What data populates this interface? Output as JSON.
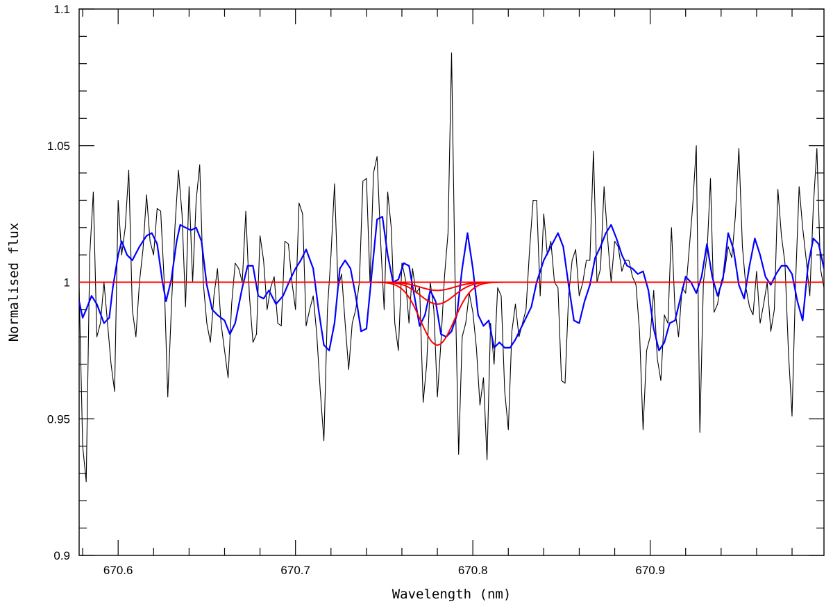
{
  "chart_data": {
    "type": "line",
    "xlabel": "Wavelength (nm)",
    "ylabel": "Normalised flux",
    "xlim": [
      670.578,
      670.998
    ],
    "ylim": [
      0.9,
      1.1
    ],
    "x_ticks": [
      670.6,
      670.7,
      670.8,
      670.9
    ],
    "x_tick_labels": [
      "670.6",
      "670.7",
      "670.8",
      "670.9"
    ],
    "y_ticks": [
      0.9,
      0.95,
      1.0,
      1.05,
      1.1
    ],
    "y_tick_labels": [
      "0.9",
      "0.95",
      "1",
      "1.05",
      "1.1"
    ],
    "series": [
      {
        "style": "observed",
        "color": "#000000",
        "x": [
          670.578,
          670.58,
          670.582,
          670.584,
          670.586,
          670.588,
          670.59,
          670.592,
          670.594,
          670.596,
          670.598,
          670.6,
          670.602,
          670.604,
          670.606,
          670.608,
          670.61,
          670.612,
          670.614,
          670.616,
          670.618,
          670.62,
          670.622,
          670.624,
          670.626,
          670.628,
          670.63,
          670.632,
          670.634,
          670.636,
          670.638,
          670.64,
          670.642,
          670.644,
          670.646,
          670.648,
          670.65,
          670.652,
          670.654,
          670.656,
          670.658,
          670.66,
          670.662,
          670.664,
          670.666,
          670.668,
          670.67,
          670.672,
          670.674,
          670.676,
          670.678,
          670.68,
          670.682,
          670.684,
          670.686,
          670.688,
          670.69,
          670.692,
          670.694,
          670.696,
          670.698,
          670.7,
          670.702,
          670.704,
          670.706,
          670.708,
          670.71,
          670.712,
          670.714,
          670.716,
          670.718,
          670.72,
          670.722,
          670.724,
          670.726,
          670.728,
          670.73,
          670.732,
          670.734,
          670.736,
          670.738,
          670.74,
          670.742,
          670.744,
          670.746,
          670.748,
          670.75,
          670.752,
          670.754,
          670.756,
          670.758,
          670.76,
          670.762,
          670.764,
          670.766,
          670.768,
          670.77,
          670.772,
          670.774,
          670.776,
          670.778,
          670.78,
          670.782,
          670.784,
          670.786,
          670.788,
          670.79,
          670.792,
          670.794,
          670.796,
          670.798,
          670.8,
          670.802,
          670.804,
          670.806,
          670.808,
          670.81,
          670.812,
          670.814,
          670.816,
          670.818,
          670.82,
          670.822,
          670.824,
          670.826,
          670.828,
          670.83,
          670.832,
          670.834,
          670.836,
          670.838,
          670.84,
          670.842,
          670.844,
          670.846,
          670.848,
          670.85,
          670.852,
          670.854,
          670.856,
          670.858,
          670.86,
          670.862,
          670.864,
          670.866,
          670.868,
          670.87,
          670.872,
          670.874,
          670.876,
          670.878,
          670.88,
          670.882,
          670.884,
          670.886,
          670.888,
          670.89,
          670.892,
          670.894,
          670.896,
          670.898,
          670.9,
          670.902,
          670.904,
          670.906,
          670.908,
          670.91,
          670.912,
          670.914,
          670.916,
          670.918,
          670.92,
          670.922,
          670.924,
          670.926,
          670.928,
          670.93,
          670.932,
          670.934,
          670.936,
          670.938,
          670.94,
          670.942,
          670.944,
          670.946,
          670.948,
          670.95,
          670.952,
          670.954,
          670.956,
          670.958,
          670.96,
          670.962,
          670.964,
          670.966,
          670.968,
          670.97,
          670.972,
          670.974,
          670.976,
          670.978,
          670.98,
          670.982,
          670.984,
          670.986,
          670.988,
          670.99,
          670.992,
          670.994,
          670.996,
          670.998
        ],
        "y": [
          0.998,
          0.94,
          0.927,
          1.01,
          1.033,
          0.98,
          0.985,
          1.0,
          0.985,
          0.97,
          0.96,
          1.03,
          1.01,
          1.02,
          1.041,
          0.99,
          0.98,
          1.0,
          1.012,
          1.032,
          1.015,
          1.01,
          1.027,
          1.026,
          1.0,
          0.958,
          0.99,
          1.02,
          1.041,
          1.025,
          0.991,
          1.035,
          1.0,
          1.03,
          1.043,
          1.0,
          0.985,
          0.978,
          0.995,
          1.005,
          0.985,
          0.975,
          0.965,
          0.992,
          1.007,
          1.005,
          1.0,
          1.026,
          0.995,
          0.978,
          0.981,
          1.017,
          1.008,
          0.99,
          0.998,
          1.002,
          0.985,
          0.984,
          1.015,
          1.014,
          1.0,
          0.99,
          1.029,
          1.025,
          0.984,
          0.99,
          0.995,
          0.981,
          0.96,
          0.942,
          0.99,
          1.01,
          1.036,
          0.998,
          1.003,
          0.985,
          0.968,
          0.985,
          0.99,
          1.0,
          1.037,
          1.038,
          1.0,
          1.04,
          1.046,
          1.015,
          0.99,
          1.033,
          1.02,
          0.985,
          0.975,
          1.007,
          1.001,
          0.985,
          1.005,
          0.996,
          0.998,
          0.956,
          0.97,
          1.0,
          0.99,
          0.958,
          0.978,
          1.002,
          1.018,
          1.084,
          1.0,
          0.937,
          0.98,
          0.985,
          0.996,
          0.989,
          0.976,
          0.955,
          0.965,
          0.935,
          0.985,
          0.97,
          0.998,
          0.995,
          0.96,
          0.946,
          0.982,
          0.992,
          0.98,
          0.985,
          0.99,
          1.012,
          1.03,
          1.03,
          0.995,
          1.025,
          1.01,
          1.015,
          1.0,
          0.998,
          0.964,
          0.963,
          0.995,
          1.008,
          1.012,
          0.995,
          1.0,
          1.008,
          1.008,
          1.048,
          1.0,
          1.005,
          1.035,
          1.016,
          1.0,
          1.015,
          1.013,
          1.004,
          1.008,
          1.008,
          1.002,
          0.999,
          0.982,
          0.946,
          0.975,
          0.98,
          0.997,
          0.972,
          0.964,
          0.988,
          0.985,
          1.02,
          0.99,
          0.98,
          0.998,
          0.996,
          1.012,
          1.028,
          1.05,
          0.945,
          1.0,
          1.01,
          1.038,
          0.989,
          0.992,
          1.0,
          1.004,
          1.013,
          1.009,
          1.024,
          1.049,
          1.013,
          0.998,
          0.991,
          0.988,
          1.004,
          0.985,
          0.992,
          1.0,
          0.982,
          0.99,
          1.034,
          1.017,
          1.007,
          0.974,
          0.951,
          1.0,
          1.035,
          1.02,
          1.008,
          0.995,
          1.028,
          1.049,
          1.005,
          0.998
        ]
      },
      {
        "style": "smoothed",
        "color": "#0000ff",
        "x": [
          670.578,
          670.58,
          670.582,
          670.585,
          670.588,
          670.592,
          670.595,
          670.597,
          670.6,
          670.602,
          670.605,
          670.608,
          670.612,
          670.616,
          670.619,
          670.622,
          670.625,
          670.627,
          670.63,
          670.633,
          670.635,
          670.638,
          670.641,
          670.644,
          670.647,
          670.65,
          670.653,
          670.656,
          670.66,
          670.663,
          670.666,
          670.67,
          670.673,
          670.676,
          670.679,
          670.682,
          670.685,
          670.689,
          670.693,
          670.697,
          670.7,
          670.703,
          670.706,
          670.71,
          670.713,
          670.716,
          670.719,
          670.722,
          670.725,
          670.728,
          670.731,
          670.734,
          670.737,
          670.74,
          670.743,
          670.746,
          670.749,
          670.752,
          670.755,
          670.758,
          670.761,
          670.764,
          670.767,
          670.77,
          670.773,
          670.776,
          670.779,
          670.782,
          670.785,
          670.788,
          670.791,
          670.794,
          670.797,
          670.8,
          670.803,
          670.806,
          670.809,
          670.812,
          670.815,
          670.818,
          670.821,
          670.824,
          670.827,
          670.83,
          670.833,
          670.836,
          670.84,
          670.844,
          670.848,
          670.851,
          670.854,
          670.857,
          670.86,
          670.863,
          670.866,
          670.869,
          670.872,
          670.875,
          670.878,
          670.881,
          670.884,
          670.887,
          670.89,
          670.893,
          670.896,
          670.899,
          670.902,
          670.905,
          670.908,
          670.911,
          670.914,
          670.917,
          670.92,
          670.923,
          670.926,
          670.929,
          670.932,
          670.935,
          670.938,
          670.941,
          670.944,
          670.947,
          670.95,
          670.953,
          670.956,
          670.959,
          670.962,
          670.965,
          670.968,
          670.971,
          670.974,
          670.977,
          670.98,
          670.983,
          670.986,
          670.989,
          670.992,
          670.995,
          670.998
        ],
        "y": [
          0.993,
          0.987,
          0.99,
          0.995,
          0.992,
          0.985,
          0.987,
          0.998,
          1.01,
          1.015,
          1.01,
          1.008,
          1.013,
          1.017,
          1.018,
          1.014,
          1.0,
          0.993,
          1.001,
          1.015,
          1.021,
          1.02,
          1.019,
          1.02,
          1.015,
          0.999,
          0.99,
          0.988,
          0.986,
          0.981,
          0.985,
          0.998,
          1.006,
          1.006,
          0.995,
          0.994,
          0.997,
          0.992,
          0.995,
          1.001,
          1.005,
          1.008,
          1.012,
          1.005,
          0.99,
          0.977,
          0.975,
          0.985,
          1.005,
          1.008,
          1.005,
          0.995,
          0.982,
          0.983,
          1.003,
          1.023,
          1.024,
          1.01,
          1.0,
          1.001,
          1.007,
          1.006,
          0.995,
          0.984,
          0.988,
          0.997,
          0.993,
          0.981,
          0.98,
          0.982,
          0.988,
          1.005,
          1.018,
          1.005,
          0.988,
          0.984,
          0.986,
          0.976,
          0.978,
          0.976,
          0.976,
          0.979,
          0.983,
          0.987,
          0.991,
          1.0,
          1.008,
          1.013,
          1.018,
          1.013,
          0.999,
          0.986,
          0.985,
          0.993,
          0.999,
          1.009,
          1.013,
          1.018,
          1.021,
          1.016,
          1.01,
          1.006,
          1.005,
          1.003,
          1.004,
          0.997,
          0.983,
          0.975,
          0.978,
          0.985,
          0.986,
          0.994,
          1.002,
          1.0,
          0.996,
          1.002,
          1.014,
          1.002,
          0.995,
          1.001,
          1.018,
          1.012,
          0.999,
          0.994,
          1.006,
          1.016,
          1.01,
          1.002,
          0.999,
          1.003,
          1.006,
          1.006,
          1.003,
          0.993,
          0.986,
          1.006,
          1.016,
          1.014,
          1.005
        ]
      },
      {
        "style": "model",
        "color": "#ff0000",
        "profile": "gaussian",
        "baseline": 1.0,
        "center": 670.78,
        "sigma": 0.0095,
        "depths": [
          0.0,
          0.003,
          0.008,
          0.023
        ]
      }
    ]
  }
}
